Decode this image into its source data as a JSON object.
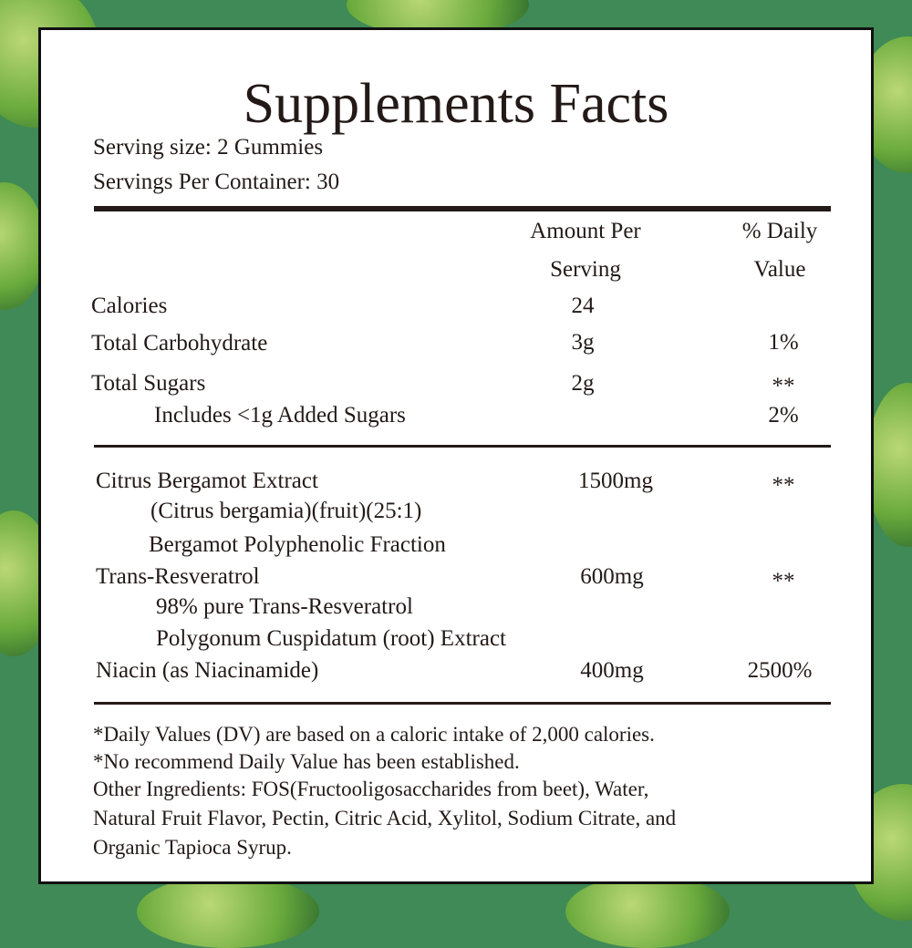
{
  "title": "Supplements Facts",
  "serving_size": "Serving size: 2 Gummies",
  "servings_per_container": "Servings Per Container: 30",
  "headers": {
    "amount_line1": "Amount Per",
    "amount_line2": "Serving",
    "dv_line1": "% Daily",
    "dv_line2": "Value"
  },
  "nutrients": [
    {
      "name": "Calories",
      "amount": "24",
      "dv": ""
    },
    {
      "name": "Total Carbohydrate",
      "amount": "3g",
      "dv": "1%"
    },
    {
      "name": "Total Sugars",
      "amount": "2g",
      "dv": "**"
    },
    {
      "name": "Includes <1g Added Sugars",
      "amount": "",
      "dv": "2%"
    }
  ],
  "ingredients": [
    {
      "name": "Citrus Bergamot Extract",
      "amount": "1500mg",
      "dv": "**"
    },
    {
      "name": "(Citrus bergamia)(fruit)(25:1)"
    },
    {
      "name": "Bergamot Polyphenolic Fraction"
    },
    {
      "name": "Trans-Resveratrol",
      "amount": "600mg",
      "dv": "**"
    },
    {
      "name": "98% pure Trans-Resveratrol"
    },
    {
      "name": "Polygonum Cuspidatum (root) Extract"
    },
    {
      "name": "Niacin (as Niacinamide)",
      "amount": "400mg",
      "dv": "2500%"
    }
  ],
  "footnotes": [
    "*Daily Values (DV) are based on a caloric intake of 2,000 calories.",
    "*No recommend Daily Value has been established.",
    "Other Ingredients: FOS(Fructooligosaccharides from beet), Water,",
    "Natural Fruit Flavor, Pectin, Citric Acid, Xylitol, Sodium Citrate, and",
    "Organic Tapioca Syrup."
  ],
  "colors": {
    "background": "#3f8a56",
    "panel": "#ffffff",
    "text": "#231a17"
  }
}
